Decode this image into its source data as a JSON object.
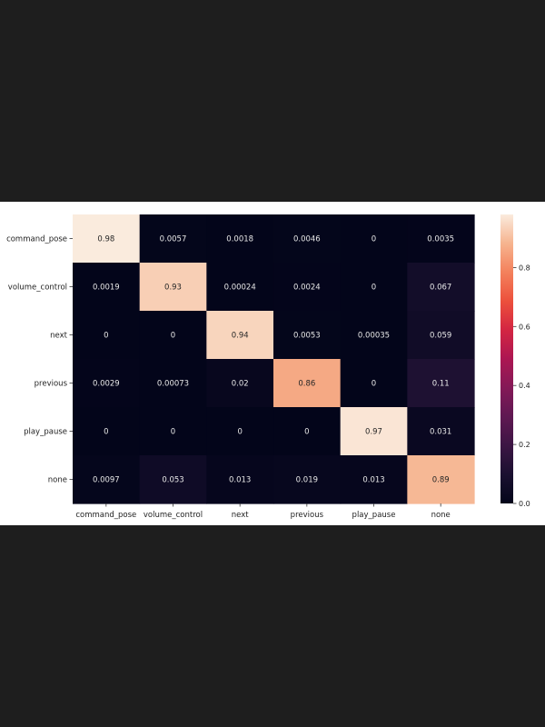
{
  "chart_data": {
    "type": "heatmap",
    "title": "",
    "xlabel": "",
    "ylabel": "",
    "rows": [
      "command_pose",
      "volume_control",
      "next",
      "previous",
      "play_pause",
      "none"
    ],
    "columns": [
      "command_pose",
      "volume_control",
      "next",
      "previous",
      "play_pause",
      "none"
    ],
    "values": [
      [
        0.98,
        0.0057,
        0.0018,
        0.0046,
        0,
        0.0035
      ],
      [
        0.0019,
        0.93,
        0.00024,
        0.0024,
        0,
        0.067
      ],
      [
        0,
        0,
        0.94,
        0.0053,
        0.00035,
        0.059
      ],
      [
        0.0029,
        0.00073,
        0.02,
        0.86,
        0,
        0.11
      ],
      [
        0,
        0,
        0,
        0,
        0.97,
        0.031
      ],
      [
        0.0097,
        0.053,
        0.013,
        0.019,
        0.013,
        0.89
      ]
    ],
    "cell_labels": [
      [
        "0.98",
        "0.0057",
        "0.0018",
        "0.0046",
        "0",
        "0.0035"
      ],
      [
        "0.0019",
        "0.93",
        "0.00024",
        "0.0024",
        "0",
        "0.067"
      ],
      [
        "0",
        "0",
        "0.94",
        "0.0053",
        "0.00035",
        "0.059"
      ],
      [
        "0.0029",
        "0.00073",
        "0.02",
        "0.86",
        "0",
        "0.11"
      ],
      [
        "0",
        "0",
        "0",
        "0",
        "0.97",
        "0.031"
      ],
      [
        "0.0097",
        "0.053",
        "0.013",
        "0.019",
        "0.013",
        "0.89"
      ]
    ],
    "colorbar": {
      "range": [
        0,
        0.98
      ],
      "ticks": [
        0.0,
        0.2,
        0.4,
        0.6,
        0.8
      ],
      "tick_labels": [
        "0.0",
        "0.2",
        "0.4",
        "0.6",
        "0.8"
      ],
      "colormap": "rocket",
      "placement": "right"
    },
    "grid": false,
    "legend": "none"
  }
}
